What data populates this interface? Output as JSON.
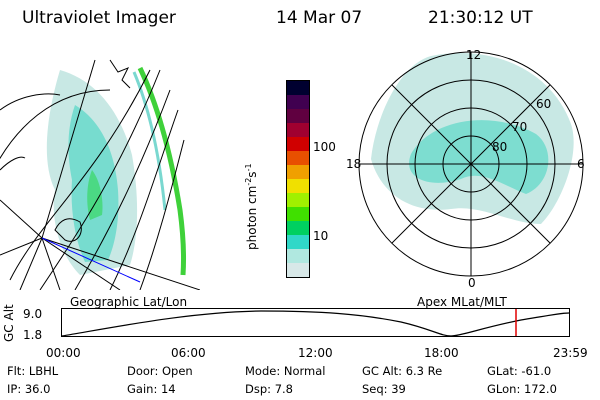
{
  "header": {
    "title": "Ultraviolet Imager",
    "date": "14 Mar 07",
    "time": "21:30:12 UT"
  },
  "colorbar": {
    "axis_label": "photon cm",
    "exp1": "-2",
    "mid": "s",
    "exp2": "-1",
    "ticks": [
      "100",
      "10"
    ],
    "colors": [
      "#000030",
      "#400050",
      "#600040",
      "#a00030",
      "#d00000",
      "#e85000",
      "#f0a000",
      "#f0e000",
      "#a0f000",
      "#40e000",
      "#00d060",
      "#30d8c8",
      "#b0e8e0",
      "#d8e8e8"
    ]
  },
  "polar": {
    "mlt_labels": [
      "12",
      "18",
      "6",
      "0"
    ],
    "lat_labels": [
      "60",
      "70",
      "80"
    ]
  },
  "panel_labels": {
    "left": "Geographic Lat/Lon",
    "right": "Apex MLat/MLT"
  },
  "timeline": {
    "ylabel": "GC Alt",
    "yticks": [
      "9.0",
      "1.8"
    ],
    "xticks": [
      "00:00",
      "06:00",
      "12:00",
      "18:00",
      "23:59"
    ],
    "marker_color": "#e00000"
  },
  "info": [
    {
      "label": "Flt:",
      "value": "LBHL"
    },
    {
      "label": "Door:",
      "value": "Open"
    },
    {
      "label": "Mode:",
      "value": "Normal"
    },
    {
      "label": "GC Alt:",
      "value": "6.3 Re"
    },
    {
      "label": "GLat:",
      "value": "-61.0"
    },
    {
      "label": "IP:",
      "value": "36.0"
    },
    {
      "label": "Gain:",
      "value": "14"
    },
    {
      "label": "Dsp:",
      "value": "7.8"
    },
    {
      "label": "Seq:",
      "value": "39"
    },
    {
      "label": "GLon:",
      "value": "172.0"
    }
  ]
}
